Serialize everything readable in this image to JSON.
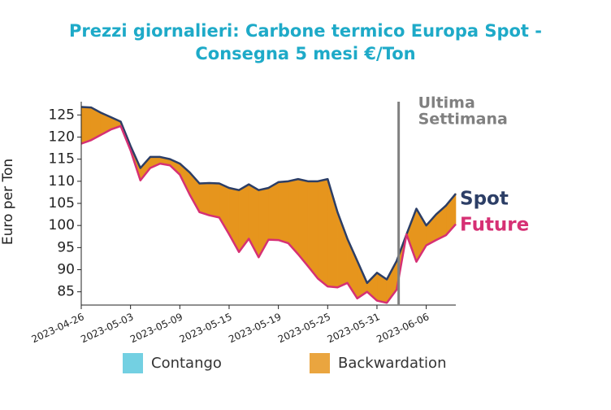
{
  "chart_data": {
    "type": "spread-area",
    "title": [
      "Prezzi giornalieri: Carbone termico Europa Spot -",
      "Consegna 5 mesi €/Ton"
    ],
    "y_label": "Euro per Ton",
    "categories": [
      "2023-04-26",
      null,
      null,
      null,
      null,
      "2023-05-03",
      null,
      null,
      null,
      null,
      "2023-05-09",
      null,
      null,
      null,
      null,
      "2023-05-15",
      null,
      null,
      null,
      null,
      "2023-05-19",
      null,
      null,
      null,
      null,
      "2023-05-25",
      null,
      null,
      null,
      null,
      "2023-05-31",
      null,
      null,
      null,
      null,
      "2023-06-06",
      null,
      null,
      null
    ],
    "series": [
      {
        "name": "Spot",
        "color": "#2c3e66",
        "values": [
          126.8,
          126.7,
          125.5,
          124.5,
          123.5,
          118,
          113,
          115.5,
          115.5,
          115,
          114,
          112,
          109.5,
          109.6,
          109.5,
          108.5,
          108,
          109.3,
          108,
          108.5,
          109.8,
          110,
          110.5,
          110,
          110,
          110.5,
          103,
          97,
          92,
          87,
          89.3,
          87.8,
          92,
          98,
          103.8,
          100,
          102.5,
          104.5,
          107.2
        ]
      },
      {
        "name": "Future",
        "color": "#d63074",
        "values": [
          118.5,
          119.3,
          120.5,
          121.7,
          122.5,
          117,
          110.2,
          113,
          114,
          113.6,
          111.5,
          107,
          103,
          102.3,
          101.8,
          98,
          94,
          97,
          92.8,
          96.8,
          96.7,
          96,
          93.5,
          90.8,
          88,
          86.2,
          86,
          87,
          83.5,
          85,
          83,
          82.5,
          85.5,
          98,
          91.8,
          95.5,
          96.7,
          97.8,
          100.3
        ]
      }
    ],
    "fill_legend": [
      {
        "name": "Contango",
        "color": "#5bc8dd"
      },
      {
        "name": "Backwardation",
        "color": "#e6951d"
      }
    ],
    "annotation": {
      "lines": [
        "Ultima",
        "Settimana"
      ],
      "x": 32.2,
      "color": "#808080"
    },
    "ylim": [
      82,
      128
    ],
    "yticks": [
      85,
      90,
      95,
      100,
      105,
      110,
      115,
      120,
      125
    ],
    "grid": false
  }
}
